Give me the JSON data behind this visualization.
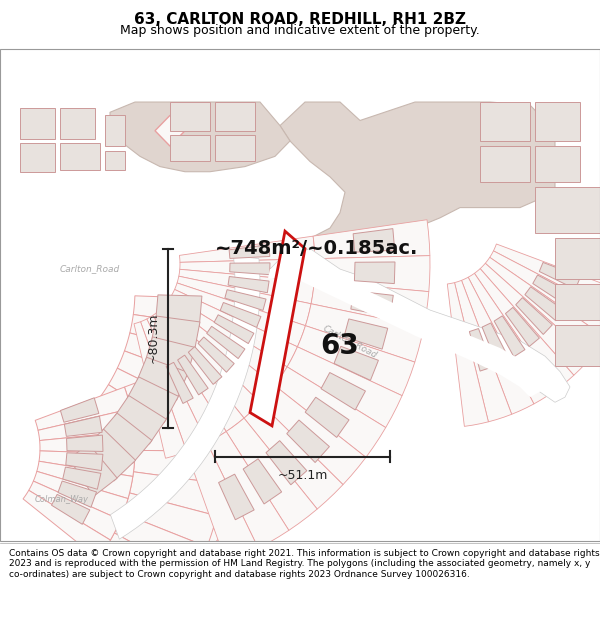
{
  "title": "63, CARLTON ROAD, REDHILL, RH1 2BZ",
  "subtitle": "Map shows position and indicative extent of the property.",
  "footer": "Contains OS data © Crown copyright and database right 2021. This information is subject to Crown copyright and database rights 2023 and is reproduced with the permission of HM Land Registry. The polygons (including the associated geometry, namely x, y co-ordinates) are subject to Crown copyright and database rights 2023 Ordnance Survey 100026316.",
  "area_text": "~748m²/~0.185ac.",
  "dim_width": "~51.1m",
  "dim_height": "~80.3m",
  "label_63": "63",
  "map_bg": "#f5f0ee",
  "road_white": "#ffffff",
  "road_strip": "#e8e0dc",
  "large_block_fill": "#e0d5cf",
  "plot_red": "#cc1111",
  "dim_color": "#222222",
  "building_fill": "#e8e2de",
  "building_edge": "#cc9999",
  "thin_plot_edge": "#e8a0a0",
  "thin_plot_fill": "#faf8f7",
  "street_color": "#aaaaaa",
  "text_color": "#111111",
  "title_fontsize": 11,
  "subtitle_fontsize": 9,
  "footer_fontsize": 6.5,
  "area_fontsize": 14,
  "dim_fontsize": 9,
  "label_fontsize": 20
}
